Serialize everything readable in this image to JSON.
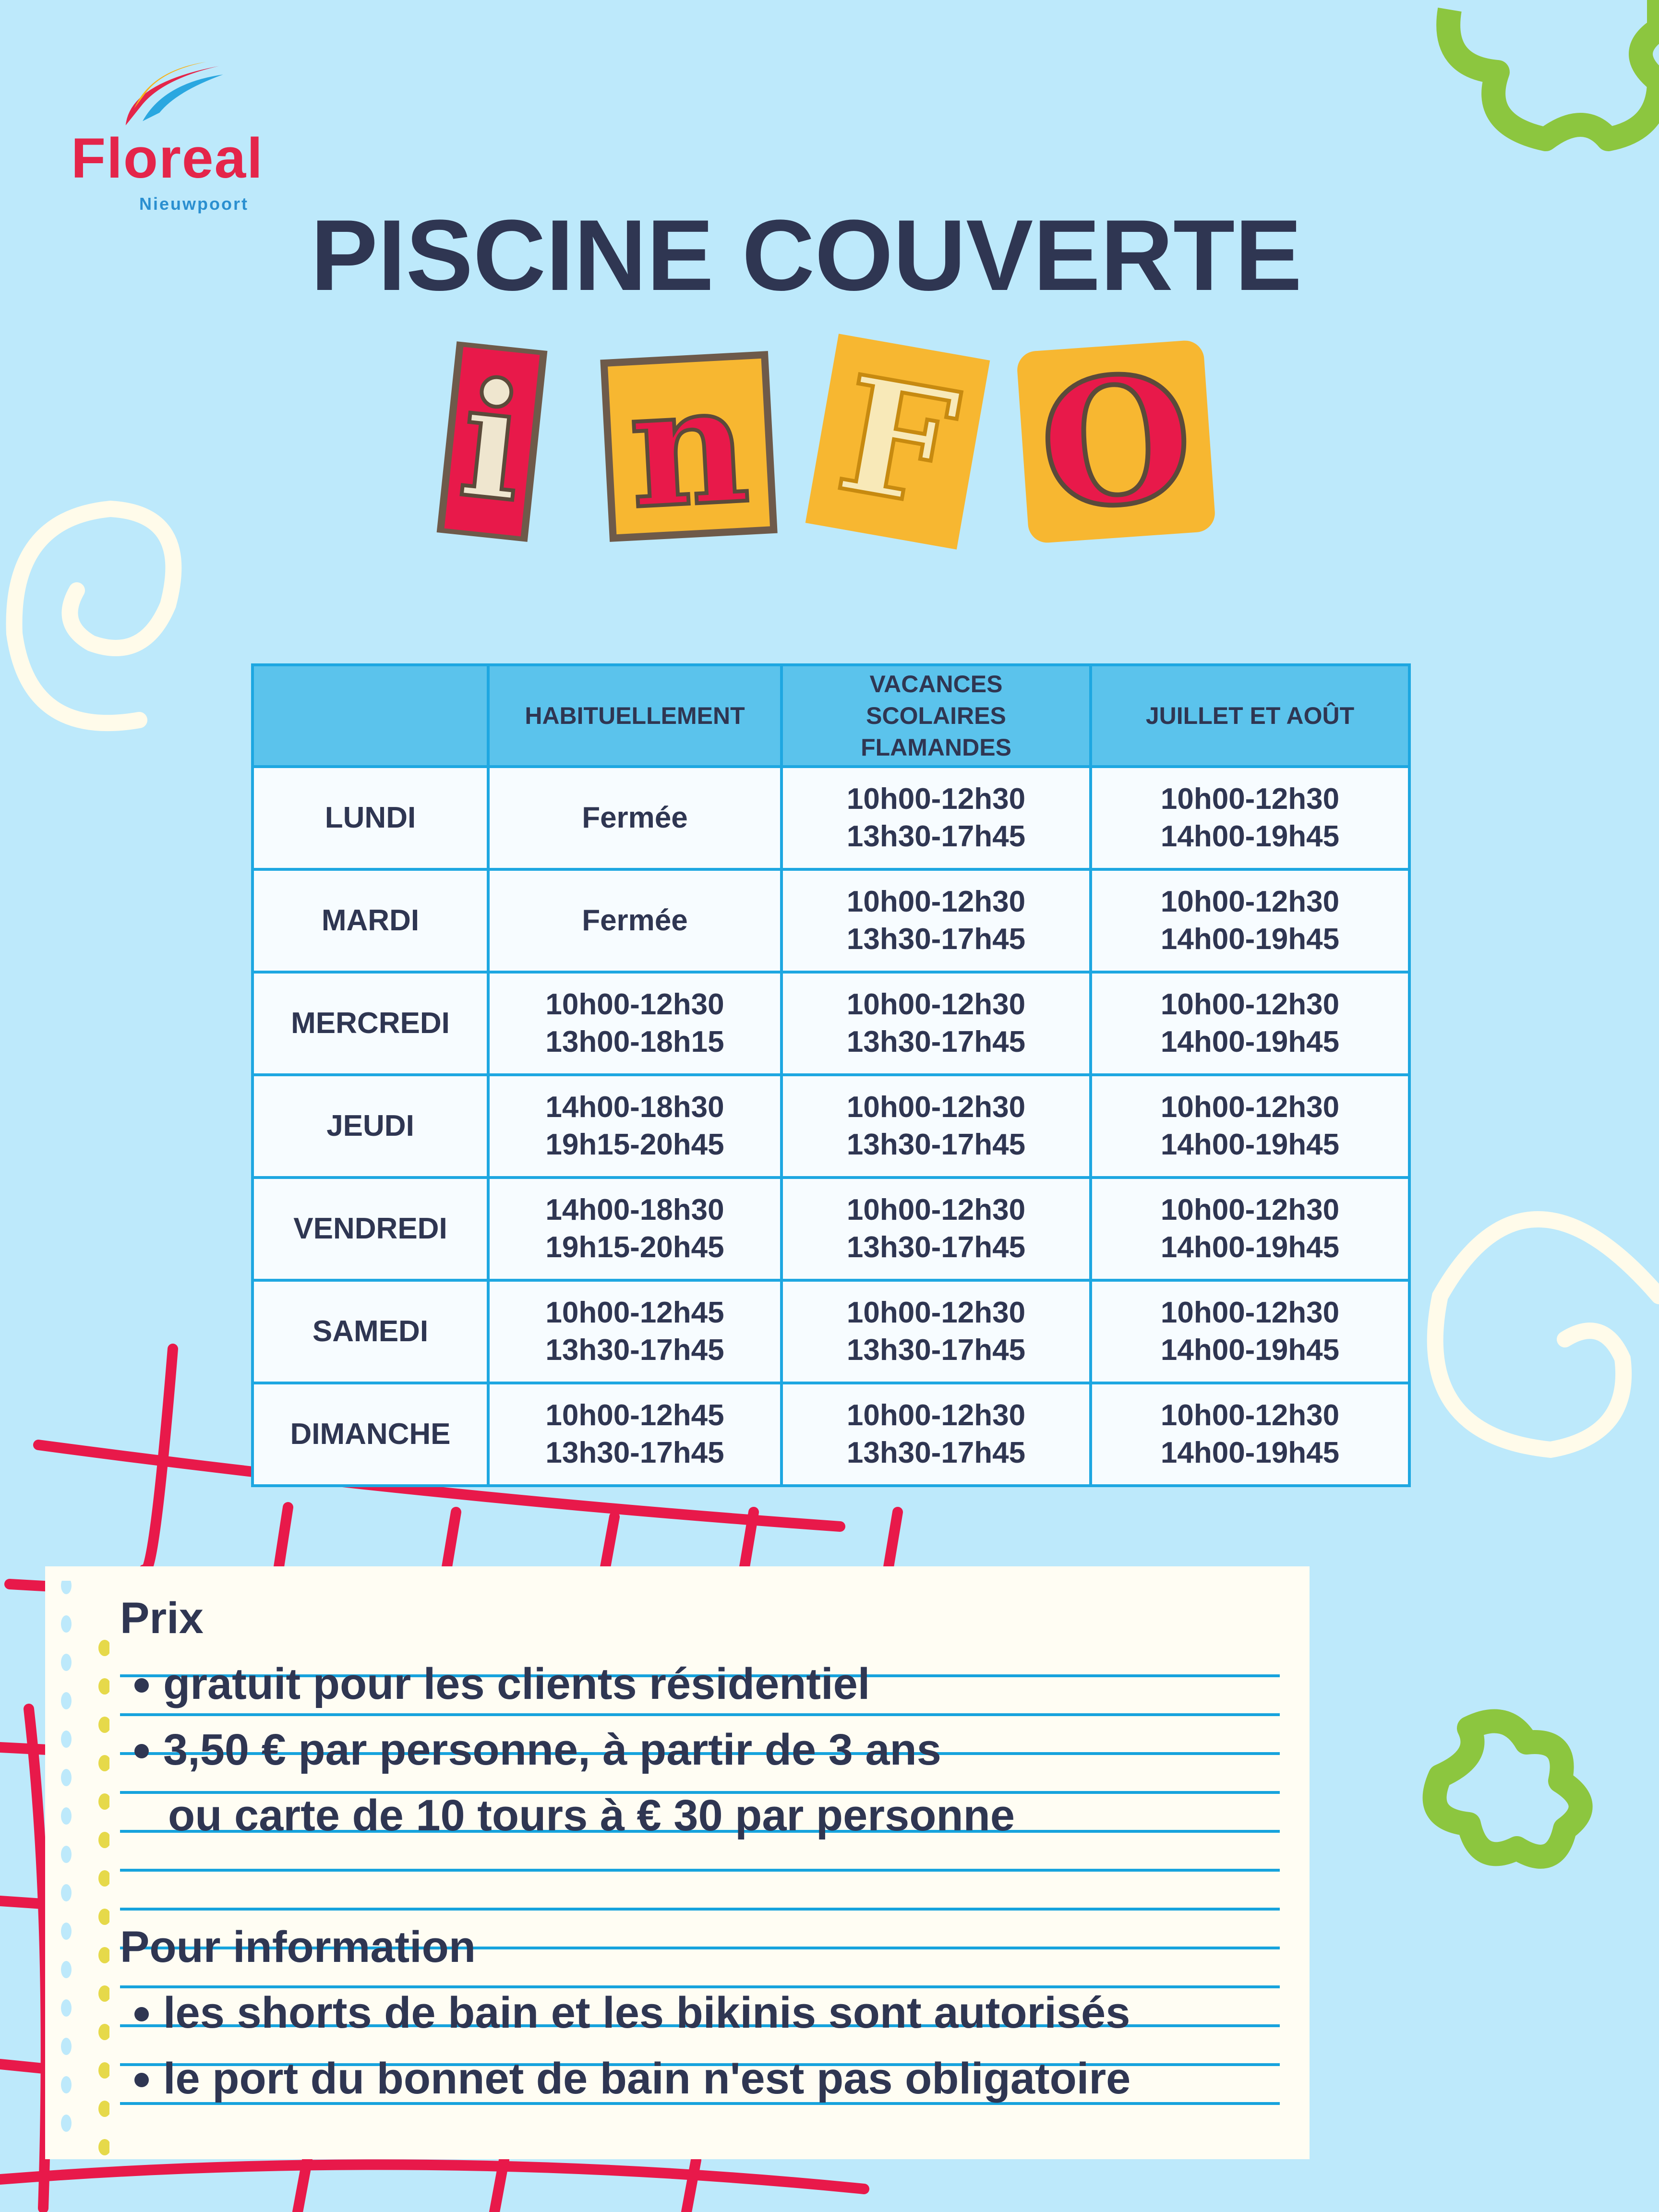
{
  "brand": {
    "name": "Floreal",
    "location": "Nieuwpoort"
  },
  "title": "PISCINE COUVERTE",
  "info_letters": [
    "i",
    "n",
    "F",
    "O"
  ],
  "colors": {
    "background": "#bde9fb",
    "header": "#5bc3ec",
    "border": "#1ea7e1",
    "text": "#2f3652",
    "accent_red": "#e4254a",
    "accent_green": "#8cc63f",
    "accent_yellow": "#f7b731"
  },
  "table": {
    "headers": [
      "",
      "HABITUELLEMENT",
      "VACANCES SCOLAIRES FLAMANDES",
      "JUILLET ET AOÛT"
    ],
    "rows": [
      {
        "day": "LUNDI",
        "cells": [
          [
            "Fermée"
          ],
          [
            "10h00-12h30",
            "13h30-17h45"
          ],
          [
            "10h00-12h30",
            "14h00-19h45"
          ]
        ]
      },
      {
        "day": "MARDI",
        "cells": [
          [
            "Fermée"
          ],
          [
            "10h00-12h30",
            "13h30-17h45"
          ],
          [
            "10h00-12h30",
            "14h00-19h45"
          ]
        ]
      },
      {
        "day": "MERCREDI",
        "cells": [
          [
            "10h00-12h30",
            "13h00-18h15"
          ],
          [
            "10h00-12h30",
            "13h30-17h45"
          ],
          [
            "10h00-12h30",
            "14h00-19h45"
          ]
        ]
      },
      {
        "day": "JEUDI",
        "cells": [
          [
            "14h00-18h30",
            "19h15-20h45"
          ],
          [
            "10h00-12h30",
            "13h30-17h45"
          ],
          [
            "10h00-12h30",
            "14h00-19h45"
          ]
        ]
      },
      {
        "day": "VENDREDI",
        "cells": [
          [
            "14h00-18h30",
            "19h15-20h45"
          ],
          [
            "10h00-12h30",
            "13h30-17h45"
          ],
          [
            "10h00-12h30",
            "14h00-19h45"
          ]
        ]
      },
      {
        "day": "SAMEDI",
        "cells": [
          [
            "10h00-12h45",
            "13h30-17h45"
          ],
          [
            "10h00-12h30",
            "13h30-17h45"
          ],
          [
            "10h00-12h30",
            "14h00-19h45"
          ]
        ]
      },
      {
        "day": "DIMANCHE",
        "cells": [
          [
            "10h00-12h45",
            "13h30-17h45"
          ],
          [
            "10h00-12h30",
            "13h30-17h45"
          ],
          [
            "10h00-12h30",
            "14h00-19h45"
          ]
        ]
      }
    ]
  },
  "notes": {
    "price_heading": "Prix",
    "price_items": [
      "gratuit pour les clients résidentiel",
      "3,50 € par personne, à partir de 3 ans"
    ],
    "price_continuation": "ou carte de 10 tours à € 30 par personne",
    "info_heading": "Pour information",
    "info_items": [
      "les shorts de bain et les bikinis sont autorisés",
      "le port du bonnet de bain n'est pas obligatoire"
    ]
  }
}
